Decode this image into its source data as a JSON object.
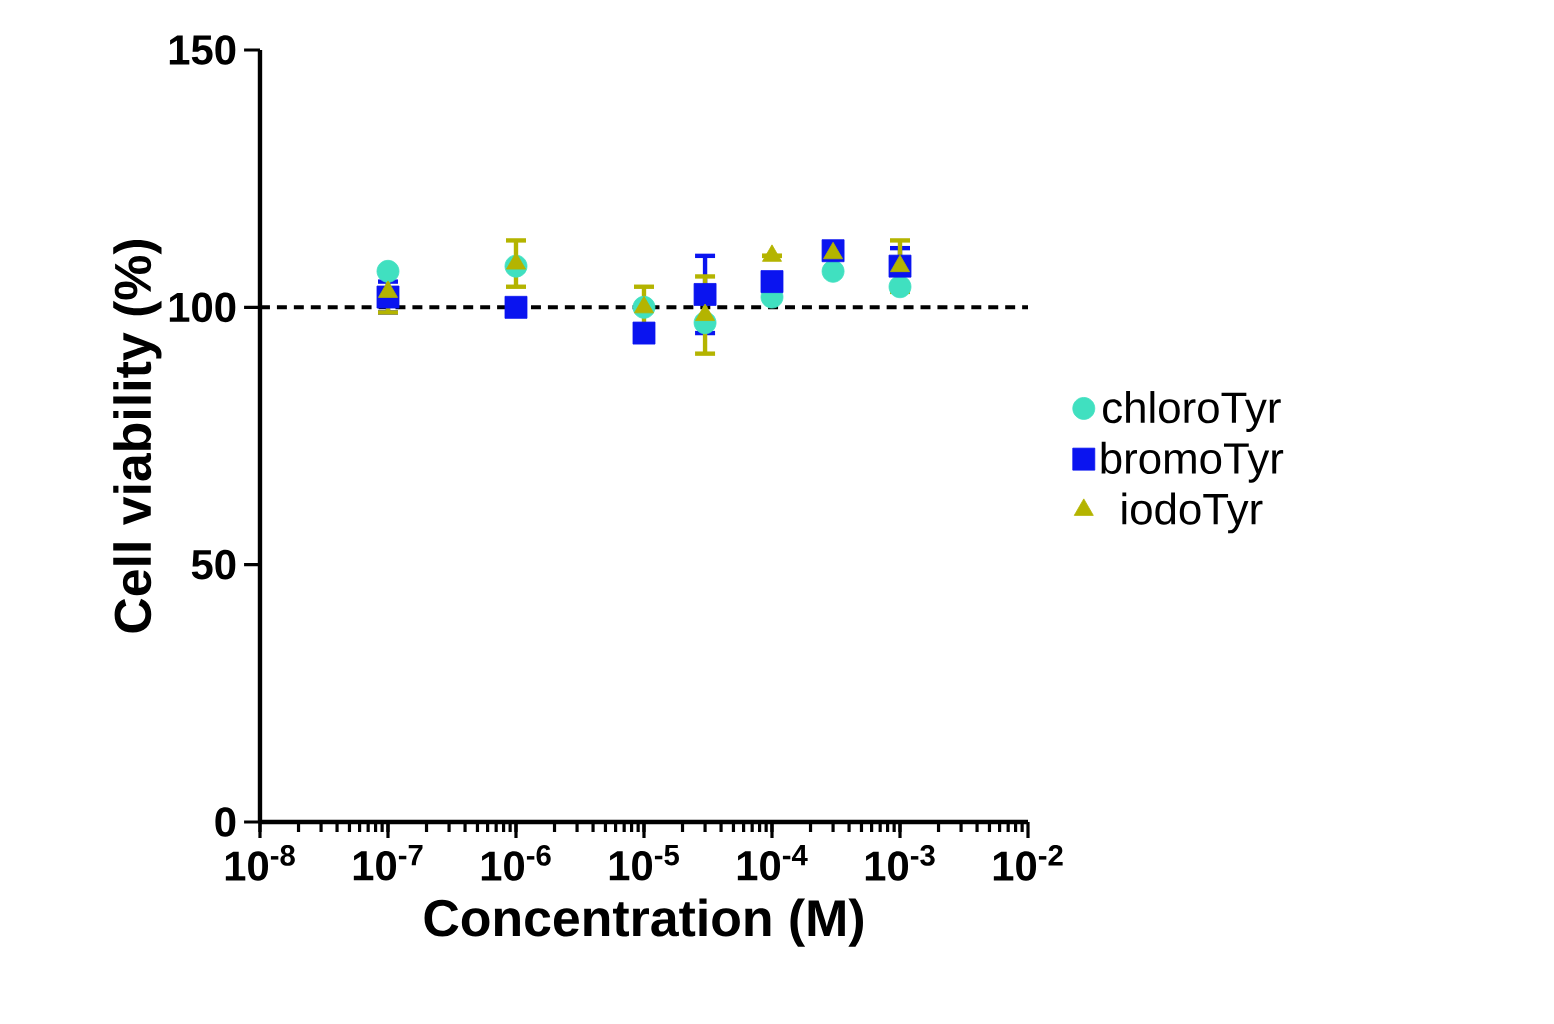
{
  "chart_data": {
    "type": "scatter",
    "xlabel": "Concentration (M)",
    "ylabel": "Cell viability (%)",
    "log": "x",
    "legend": "right",
    "grid": false,
    "x": [
      1e-07,
      1e-06,
      1e-05,
      3e-05,
      0.0001,
      0.0003,
      0.001
    ],
    "xlim": [
      1e-08,
      0.01
    ],
    "xticks": [
      {
        "value": 1e-08,
        "label": "10$^{-8}$"
      },
      {
        "value": 1e-07,
        "label": "10$^{-7}$"
      },
      {
        "value": 1e-06,
        "label": "10$^{-6}$"
      },
      {
        "value": 1e-05,
        "label": "10$^{-5}$"
      },
      {
        "value": 0.0001,
        "label": "10$^{-4}$"
      },
      {
        "value": 0.001,
        "label": "10$^{-3}$"
      },
      {
        "value": 0.01,
        "label": "10$^{-2}$"
      }
    ],
    "ylim": [
      0,
      150
    ],
    "yticks": [
      0,
      50,
      100,
      150
    ],
    "ref_lines": [
      {
        "axis": "y",
        "value": 100,
        "color": "#000000",
        "line_style": "dashed"
      }
    ],
    "series": [
      {
        "name": "chloroTyr",
        "color": "#40e0c0",
        "marker": "circle",
        "values": [
          107,
          108,
          100,
          97,
          102,
          107,
          104
        ]
      },
      {
        "name": "bromoTyr",
        "color": "#0a14f0",
        "marker": "square",
        "values": [
          102,
          100,
          95,
          102.5,
          105,
          111,
          108
        ],
        "errors": [
          3,
          null,
          null,
          7.5,
          null,
          null,
          3.5
        ]
      },
      {
        "name": "iodoTyr",
        "color": "#b4b400",
        "marker": "triangle",
        "values": [
          103,
          108.5,
          100,
          98.5,
          110,
          110.5,
          108
        ],
        "errors": [
          4,
          4.5,
          4,
          7.5,
          null,
          null,
          5
        ]
      }
    ]
  }
}
